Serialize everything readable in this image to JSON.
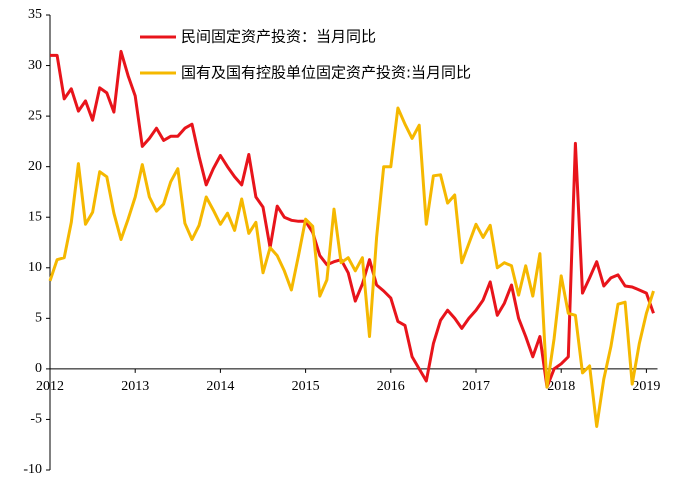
{
  "chart_data": {
    "type": "line",
    "categories": [
      "2012",
      null,
      null,
      null,
      null,
      null,
      null,
      null,
      null,
      null,
      null,
      null,
      "2013",
      null,
      null,
      null,
      null,
      null,
      null,
      null,
      null,
      null,
      null,
      null,
      "2014",
      null,
      null,
      null,
      null,
      null,
      null,
      null,
      null,
      null,
      null,
      null,
      "2015",
      null,
      null,
      null,
      null,
      null,
      null,
      null,
      null,
      null,
      null,
      null,
      "2016",
      null,
      null,
      null,
      null,
      null,
      null,
      null,
      null,
      null,
      null,
      null,
      "2017",
      null,
      null,
      null,
      null,
      null,
      null,
      null,
      null,
      null,
      null,
      null,
      "2018",
      null,
      null,
      null,
      null,
      null,
      null,
      null,
      null,
      null,
      null,
      null,
      "2019",
      null
    ],
    "series": [
      {
        "name": "民间固定资产投资：当月同比",
        "color": "#e8141b",
        "values": [
          31,
          31,
          26.7,
          27.7,
          25.5,
          26.5,
          24.6,
          27.8,
          27.3,
          25.4,
          31.4,
          29,
          27,
          22,
          22.8,
          23.8,
          22.6,
          23,
          23,
          23.8,
          24.2,
          21,
          18.2,
          19.8,
          21.1,
          20,
          19,
          18.2,
          21.2,
          17,
          16,
          12,
          16.1,
          15,
          14.7,
          14.6,
          14.6,
          13.5,
          11.2,
          10.3,
          10.6,
          10.8,
          9.5,
          6.7,
          8.4,
          10.8,
          8.3,
          7.7,
          7,
          4.7,
          4.3,
          1.2,
          0,
          -1.2,
          2.5,
          4.8,
          5.8,
          5,
          4,
          5,
          5.8,
          6.8,
          8.6,
          5.3,
          6.5,
          8.3,
          5,
          3.2,
          1.2,
          3.2,
          -1.8,
          0,
          0.5,
          1.2,
          22.3,
          7.5,
          9,
          10.6,
          8.2,
          9,
          9.3,
          8.2,
          8.1,
          7.8,
          7.5,
          5.5
        ]
      },
      {
        "name": "国有及国有控股单位固定资产投资:当月同比",
        "color": "#f5b800",
        "values": [
          8.7,
          10.8,
          11,
          14.5,
          20.3,
          14.3,
          15.5,
          19.5,
          19,
          15.4,
          12.8,
          14.8,
          17,
          20.2,
          17,
          15.6,
          16.3,
          18.5,
          19.8,
          14.4,
          12.8,
          14.2,
          17,
          15.7,
          14.3,
          15.4,
          13.7,
          16.8,
          13.4,
          14.5,
          9.5,
          12,
          11.2,
          9.7,
          7.8,
          11.2,
          14.8,
          14.1,
          7.2,
          8.8,
          15.8,
          10.5,
          11,
          9.7,
          11,
          3.2,
          13,
          20,
          20,
          25.8,
          24.2,
          22.8,
          24.1,
          14.3,
          19.1,
          19.2,
          16.4,
          17.2,
          10.5,
          12.4,
          14.3,
          13,
          14.2,
          10,
          10.5,
          10.2,
          7.3,
          10.2,
          7.2,
          11.4,
          -1.8,
          3,
          9.2,
          5.5,
          5.3,
          -0.4,
          0.3,
          -5.7,
          -1,
          2.2,
          6.4,
          6.6,
          -1.5,
          2.5,
          5.5,
          7.7
        ]
      }
    ],
    "ylim": [
      -10,
      35
    ],
    "yticks": [
      -10,
      -5,
      0,
      5,
      10,
      15,
      20,
      25,
      30,
      35
    ]
  }
}
